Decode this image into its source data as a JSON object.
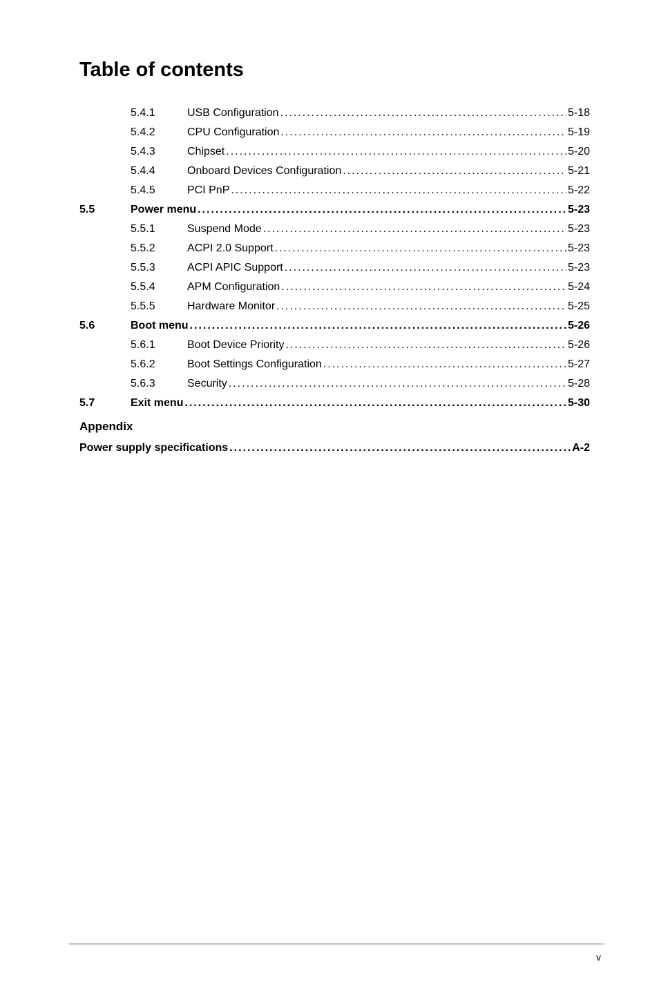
{
  "title": "Table of contents",
  "entries": [
    {
      "section": "",
      "num": "5.4.1",
      "text": "USB Configuration",
      "page": "5-18",
      "bold": false
    },
    {
      "section": "",
      "num": "5.4.2",
      "text": "CPU Configuration",
      "page": "5-19",
      "bold": false
    },
    {
      "section": "",
      "num": "5.4.3",
      "text": "Chipset",
      "page": "5-20",
      "bold": false
    },
    {
      "section": "",
      "num": "5.4.4",
      "text": "Onboard Devices Configuration",
      "page": "5-21",
      "bold": false
    },
    {
      "section": "",
      "num": "5.4.5",
      "text": "PCI PnP",
      "page": "5-22",
      "bold": false
    },
    {
      "section": "5.5",
      "num": "",
      "text": "Power menu",
      "page": "5-23",
      "bold": true
    },
    {
      "section": "",
      "num": "5.5.1",
      "text": "Suspend Mode",
      "page": "5-23",
      "bold": false
    },
    {
      "section": "",
      "num": "5.5.2",
      "text": "ACPI 2.0 Support",
      "page": "5-23",
      "bold": false
    },
    {
      "section": "",
      "num": "5.5.3",
      "text": "ACPI APIC Support",
      "page": "5-23",
      "bold": false
    },
    {
      "section": "",
      "num": "5.5.4",
      "text": "APM Configuration",
      "page": "5-24",
      "bold": false
    },
    {
      "section": "",
      "num": "5.5.5",
      "text": "Hardware Monitor",
      "page": "5-25",
      "bold": false
    },
    {
      "section": "5.6",
      "num": "",
      "text": "Boot menu",
      "page": "5-26",
      "bold": true
    },
    {
      "section": "",
      "num": "5.6.1",
      "text": "Boot Device Priority",
      "page": "5-26",
      "bold": false
    },
    {
      "section": "",
      "num": "5.6.2",
      "text": "Boot Settings Configuration",
      "page": "5-27",
      "bold": false
    },
    {
      "section": "",
      "num": "5.6.3",
      "text": "Security",
      "page": "5-28",
      "bold": false
    },
    {
      "section": "5.7",
      "num": "",
      "text": "Exit menu",
      "page": "5-30",
      "bold": true
    }
  ],
  "appendix": {
    "heading": "Appendix",
    "entry": {
      "text": "Power supply specifications",
      "page": "A-2",
      "bold": true
    }
  },
  "page_number": "v",
  "colors": {
    "text": "#000000",
    "divider": "#bfbfbf",
    "background": "#ffffff"
  },
  "fonts": {
    "title_size": 29,
    "body_size": 16,
    "pagenum_size": 14
  }
}
